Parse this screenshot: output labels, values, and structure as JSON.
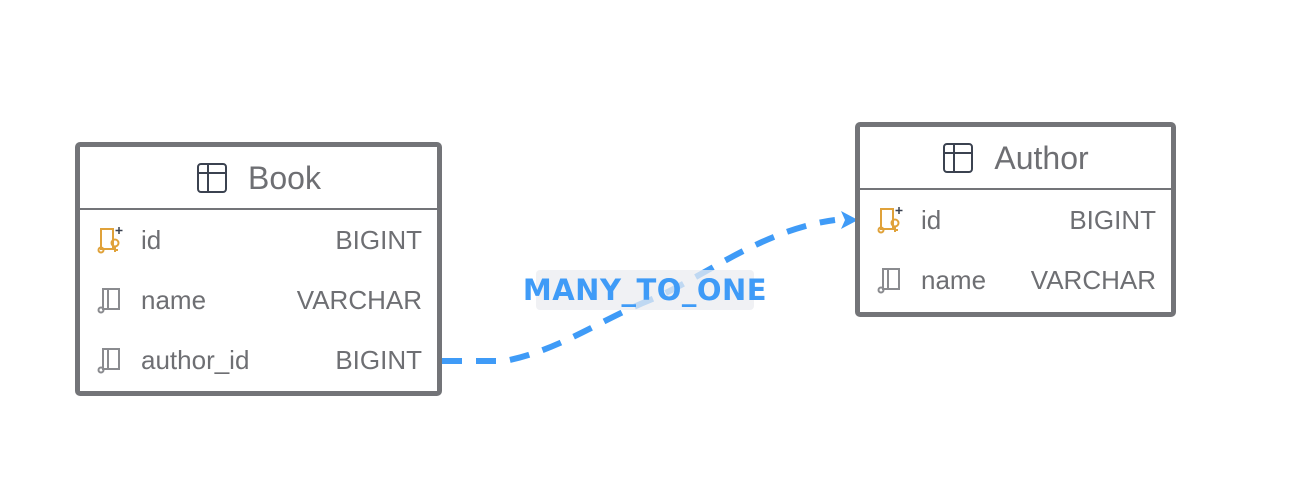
{
  "diagram": {
    "entities": [
      {
        "name": "Book",
        "icon": "table-icon",
        "columns": [
          {
            "name": "id",
            "type": "BIGINT",
            "icon": "primary-key-icon",
            "key": true
          },
          {
            "name": "name",
            "type": "VARCHAR",
            "icon": "column-icon",
            "key": false
          },
          {
            "name": "author_id",
            "type": "BIGINT",
            "icon": "column-icon",
            "key": false
          }
        ]
      },
      {
        "name": "Author",
        "icon": "table-icon",
        "columns": [
          {
            "name": "id",
            "type": "BIGINT",
            "icon": "primary-key-icon",
            "key": true
          },
          {
            "name": "name",
            "type": "VARCHAR",
            "icon": "column-icon",
            "key": false
          }
        ]
      }
    ],
    "relationships": [
      {
        "label": "MANY_TO_ONE",
        "from": "Book.author_id",
        "to": "Author.id"
      }
    ]
  },
  "colors": {
    "border": "#737478",
    "text": "#6e6f73",
    "key_icon": "#e0a23a",
    "column_icon": "#8a8b8f",
    "table_icon": "#3b4250",
    "relation": "#3f9bf7"
  }
}
